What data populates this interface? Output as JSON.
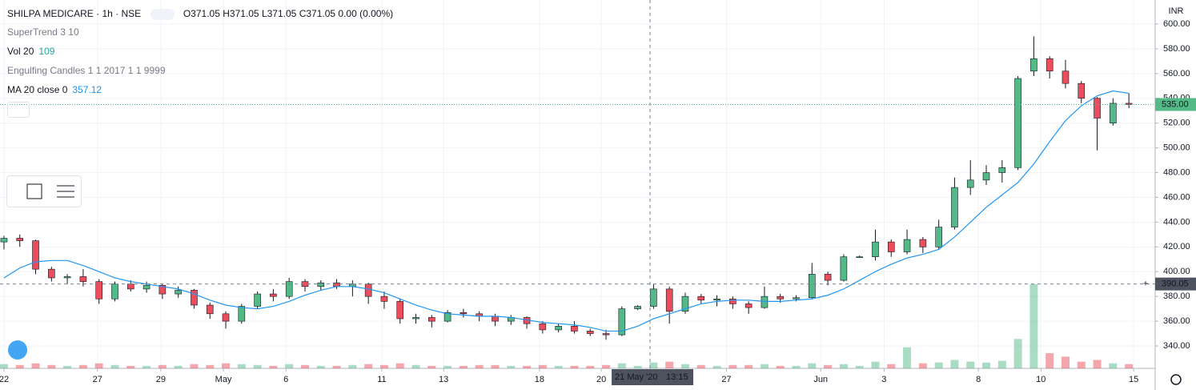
{
  "chart_data": {
    "type": "candlestick",
    "header": {
      "symbol": "SHILPA MEDICARE · 1h · NSE",
      "open": "O371.05",
      "high": "H371.05",
      "low": "L371.05",
      "close": "C371.05",
      "change": "0.00 (0.00%)"
    },
    "indicators": {
      "supertrend": "SuperTrend 3 10",
      "vol": "Vol 20",
      "vol_value": "109",
      "engulfing": "Engulfing Candles 1 1 2017 1 1 9999",
      "ma": "MA 20 close 0",
      "ma_value": "357.12"
    },
    "currency": "INR",
    "up_color": "#53b987",
    "down_color": "#eb4d5c",
    "ma_color": "#2196f3",
    "x": [
      0,
      1,
      2,
      3,
      4,
      5,
      6,
      7,
      8,
      9,
      10,
      11,
      12,
      13,
      14,
      15,
      16,
      17,
      18,
      19,
      20,
      21,
      22,
      23,
      24,
      25,
      26,
      27,
      28,
      29,
      30,
      31,
      32,
      33,
      34,
      35,
      36,
      37,
      38,
      39,
      40,
      41,
      42,
      43,
      44,
      45,
      46,
      47,
      48,
      49,
      50,
      51,
      52,
      53,
      54,
      55,
      56,
      57,
      58,
      59,
      60,
      61,
      62,
      63,
      64,
      65,
      66,
      67,
      68,
      69,
      70,
      71
    ],
    "ohlc": [
      [
        424,
        429,
        418,
        427
      ],
      [
        427,
        430,
        420,
        425
      ],
      [
        425,
        426,
        398,
        402
      ],
      [
        402,
        404,
        392,
        395
      ],
      [
        395,
        398,
        390,
        396
      ],
      [
        396,
        402,
        388,
        392
      ],
      [
        392,
        394,
        374,
        378
      ],
      [
        378,
        392,
        376,
        390
      ],
      [
        390,
        393,
        384,
        386
      ],
      [
        386,
        392,
        383,
        389
      ],
      [
        389,
        390,
        378,
        382
      ],
      [
        382,
        388,
        379,
        385
      ],
      [
        385,
        386,
        370,
        373
      ],
      [
        373,
        375,
        362,
        366
      ],
      [
        366,
        368,
        354,
        360
      ],
      [
        360,
        374,
        358,
        372
      ],
      [
        372,
        384,
        370,
        382
      ],
      [
        382,
        386,
        376,
        380
      ],
      [
        380,
        395,
        378,
        392
      ],
      [
        392,
        394,
        384,
        388
      ],
      [
        388,
        393,
        385,
        391
      ],
      [
        391,
        394,
        386,
        388
      ],
      [
        388,
        393,
        380,
        390
      ],
      [
        390,
        391,
        374,
        380
      ],
      [
        380,
        384,
        370,
        376
      ],
      [
        376,
        378,
        358,
        362
      ],
      [
        362,
        366,
        358,
        363
      ],
      [
        363,
        365,
        355,
        360
      ],
      [
        360,
        369,
        359,
        367
      ],
      [
        367,
        370,
        363,
        366
      ],
      [
        366,
        368,
        360,
        364
      ],
      [
        364,
        366,
        356,
        360
      ],
      [
        360,
        365,
        357,
        363
      ],
      [
        363,
        364,
        354,
        358
      ],
      [
        358,
        360,
        350,
        353
      ],
      [
        353,
        358,
        351,
        356
      ],
      [
        356,
        360,
        350,
        352
      ],
      [
        352,
        354,
        348,
        350
      ],
      [
        350,
        353,
        345,
        349
      ],
      [
        349,
        372,
        348,
        370
      ],
      [
        370,
        373,
        369,
        372
      ],
      [
        372,
        390,
        370,
        386
      ],
      [
        386,
        388,
        358,
        368
      ],
      [
        368,
        383,
        366,
        380
      ],
      [
        380,
        382,
        374,
        377
      ],
      [
        377,
        381,
        372,
        378
      ],
      [
        378,
        380,
        370,
        374
      ],
      [
        374,
        376,
        366,
        371
      ],
      [
        371,
        388,
        370,
        380
      ],
      [
        380,
        382,
        375,
        378
      ],
      [
        378,
        381,
        376,
        379
      ],
      [
        379,
        407,
        378,
        398
      ],
      [
        398,
        400,
        389,
        393
      ],
      [
        393,
        414,
        392,
        412
      ],
      [
        412,
        413,
        411,
        412
      ],
      [
        412,
        434,
        409,
        424
      ],
      [
        424,
        426,
        412,
        416
      ],
      [
        416,
        434,
        414,
        426
      ],
      [
        426,
        428,
        415,
        420
      ],
      [
        420,
        442,
        418,
        436
      ],
      [
        436,
        476,
        434,
        468
      ],
      [
        468,
        490,
        462,
        474
      ],
      [
        474,
        486,
        470,
        480
      ],
      [
        480,
        490,
        472,
        484
      ],
      [
        484,
        558,
        482,
        556
      ],
      [
        562,
        590,
        558,
        572
      ],
      [
        572,
        574,
        556,
        562
      ],
      [
        562,
        571,
        548,
        552
      ],
      [
        552,
        554,
        536,
        540
      ],
      [
        540,
        541,
        498,
        524
      ],
      [
        520,
        540,
        518,
        536
      ],
      [
        536,
        544,
        532,
        535
      ]
    ],
    "volumes": [
      5,
      4,
      6,
      4,
      3,
      4,
      6,
      4,
      3,
      3,
      4,
      3,
      5,
      4,
      6,
      5,
      4,
      3,
      5,
      4,
      3,
      3,
      4,
      5,
      4,
      6,
      4,
      3,
      3,
      3,
      4,
      4,
      3,
      3,
      4,
      3,
      3,
      3,
      4,
      6,
      3,
      7,
      8,
      5,
      4,
      3,
      4,
      4,
      5,
      3,
      3,
      6,
      4,
      5,
      3,
      8,
      5,
      25,
      6,
      7,
      10,
      8,
      7,
      9,
      35,
      100,
      18,
      14,
      8,
      10,
      6,
      5
    ],
    "ma": [
      395,
      403,
      408,
      409,
      409,
      405,
      400,
      395,
      392,
      390,
      388,
      386,
      382,
      377,
      373,
      371,
      370,
      372,
      376,
      381,
      385,
      388,
      388,
      386,
      383,
      378,
      373,
      369,
      366,
      365,
      364,
      364,
      363,
      361,
      359,
      358,
      357,
      355,
      352,
      352,
      356,
      362,
      366,
      370,
      374,
      376,
      377,
      377,
      376,
      376,
      377,
      378,
      381,
      386,
      393,
      400,
      406,
      411,
      414,
      418,
      428,
      440,
      452,
      462,
      472,
      487,
      505,
      522,
      534,
      542,
      546,
      544
    ],
    "ylim": [
      321.9,
      619.4
    ],
    "yticks": [
      {
        "value": 340,
        "label": "340.00"
      },
      {
        "value": 360,
        "label": "360.00"
      },
      {
        "value": 380,
        "label": "380.00"
      },
      {
        "value": 400,
        "label": "400.00"
      },
      {
        "value": 420,
        "label": "420.00"
      },
      {
        "value": 440,
        "label": "440.00"
      },
      {
        "value": 460,
        "label": "460.00"
      },
      {
        "value": 480,
        "label": "480.00"
      },
      {
        "value": 500,
        "label": "500.00"
      },
      {
        "value": 520,
        "label": "520.00"
      },
      {
        "value": 540,
        "label": "540.00"
      },
      {
        "value": 560,
        "label": "560.00"
      },
      {
        "value": 580,
        "label": "580.00"
      },
      {
        "value": 600,
        "label": "600.00"
      }
    ],
    "xlim": [
      -0.25,
      72.66
    ],
    "xticks": [
      {
        "value": 0,
        "label": "22"
      },
      {
        "value": 5.9,
        "label": "27"
      },
      {
        "value": 9.9,
        "label": "29"
      },
      {
        "value": 13.85,
        "label": "May"
      },
      {
        "value": 17.8,
        "label": "6"
      },
      {
        "value": 23.85,
        "label": "11"
      },
      {
        "value": 27.75,
        "label": "13"
      },
      {
        "value": 33.8,
        "label": "18"
      },
      {
        "value": 37.7,
        "label": "20"
      },
      {
        "value": 45.6,
        "label": "27"
      },
      {
        "value": 51.55,
        "label": "Jun"
      },
      {
        "value": 55.55,
        "label": "3"
      },
      {
        "value": 61.5,
        "label": "8"
      },
      {
        "value": 65.45,
        "label": "10"
      },
      {
        "value": 71.3,
        "label": "15"
      }
    ],
    "last_price": {
      "value": 535,
      "label": "535.00"
    },
    "crosshair": {
      "x": 40.78,
      "date": "21 May '20",
      "time": "13:15",
      "price": 390.05
    },
    "grid": true
  }
}
